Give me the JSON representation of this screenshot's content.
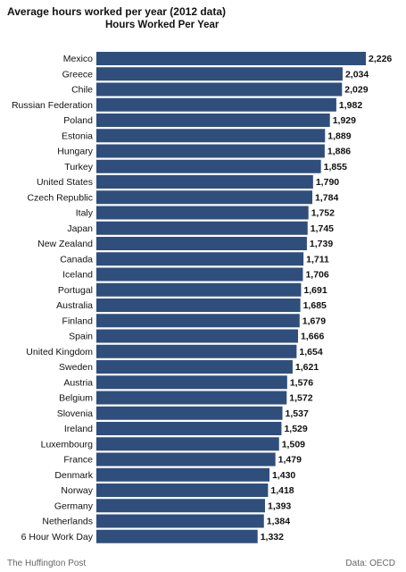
{
  "chart_data": {
    "type": "bar",
    "orientation": "horizontal",
    "title": "Average hours worked per year (2012 data)",
    "subtitle": "Hours Worked Per Year",
    "categories": [
      "Mexico",
      "Greece",
      "Chile",
      "Russian Federation",
      "Poland",
      "Estonia",
      "Hungary",
      "Turkey",
      "United States",
      "Czech Republic",
      "Italy",
      "Japan",
      "New Zealand",
      "Canada",
      "Iceland",
      "Portugal",
      "Australia",
      "Finland",
      "Spain",
      "United Kingdom",
      "Sweden",
      "Austria",
      "Belgium",
      "Slovenia",
      "Ireland",
      "Luxembourg",
      "France",
      "Denmark",
      "Norway",
      "Germany",
      "Netherlands",
      "6 Hour Work Day"
    ],
    "values": [
      2226,
      2034,
      2029,
      1982,
      1929,
      1889,
      1886,
      1855,
      1790,
      1784,
      1752,
      1745,
      1739,
      1711,
      1706,
      1691,
      1685,
      1679,
      1666,
      1654,
      1621,
      1576,
      1572,
      1537,
      1529,
      1509,
      1479,
      1430,
      1418,
      1393,
      1384,
      1332
    ],
    "value_labels": [
      "2,226",
      "2,034",
      "2,029",
      "1,982",
      "1,929",
      "1,889",
      "1,886",
      "1,855",
      "1,790",
      "1,784",
      "1,752",
      "1,745",
      "1,739",
      "1,711",
      "1,706",
      "1,691",
      "1,685",
      "1,679",
      "1,666",
      "1,654",
      "1,621",
      "1,576",
      "1,572",
      "1,537",
      "1,529",
      "1,509",
      "1,479",
      "1,430",
      "1,418",
      "1,393",
      "1,384",
      "1,332"
    ],
    "xlim": [
      0,
      2226
    ],
    "grid": false,
    "legend": "none",
    "bar_color": "#2f4e7c"
  },
  "footer": {
    "source_left": "The Huffington Post",
    "source_right": "Data: OECD"
  }
}
